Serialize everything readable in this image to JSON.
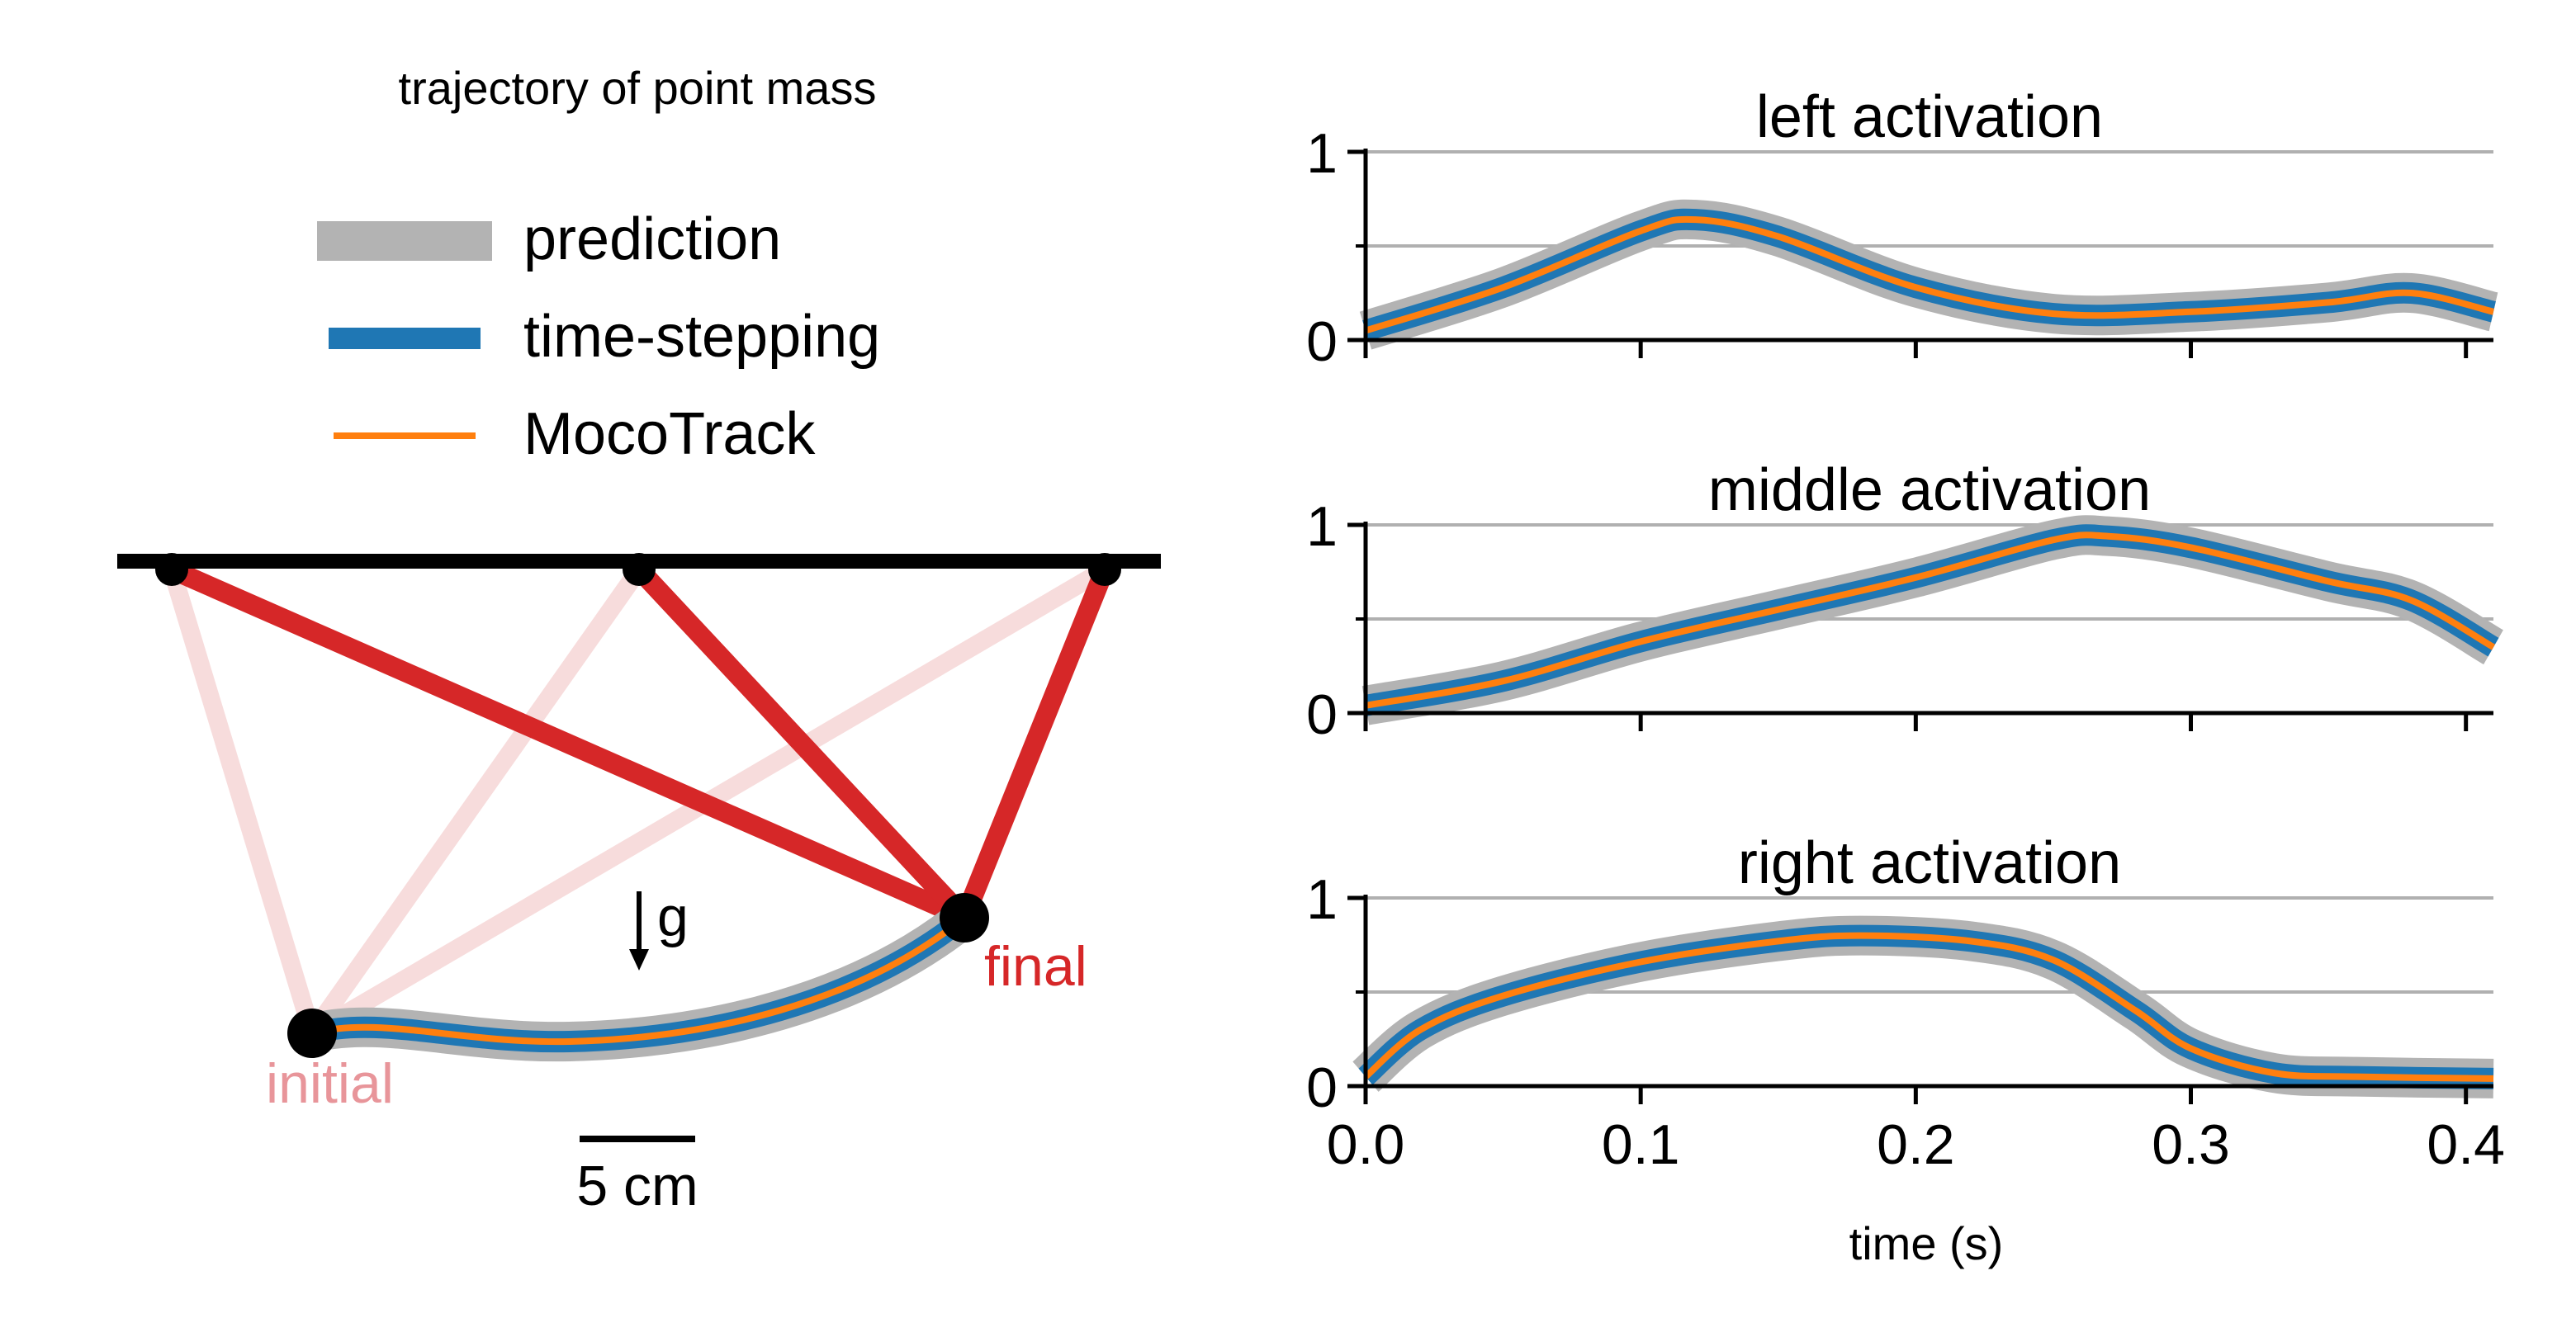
{
  "left_panel": {
    "title": "trajectory of point mass",
    "legend": [
      {
        "label": "prediction",
        "color": "#b3b3b3"
      },
      {
        "label": "time-stepping",
        "color": "#1f77b4"
      },
      {
        "label": "MocoTrack",
        "color": "#ff7f0e"
      }
    ],
    "gravity_label": "g",
    "initial_label": "initial",
    "final_label": "final",
    "scale_bar_label": "5 cm",
    "colors": {
      "muscle_final": "#d62728",
      "muscle_initial": "#f7dcdc",
      "initial_text": "#e8959a",
      "final_text": "#d62728",
      "ceiling": "#000000"
    }
  },
  "chart_data": [
    {
      "type": "line",
      "title": "left activation",
      "xlabel": "",
      "ylabel": "",
      "xlim": [
        0,
        0.41
      ],
      "ylim": [
        0,
        1
      ],
      "yticks": [
        "0",
        "1"
      ],
      "grid": true,
      "x": [
        0.0,
        0.05,
        0.1,
        0.12,
        0.15,
        0.2,
        0.25,
        0.3,
        0.35,
        0.38,
        0.41
      ],
      "series": [
        {
          "name": "prediction",
          "color": "#b3b3b3",
          "values": [
            0.05,
            0.28,
            0.58,
            0.64,
            0.55,
            0.28,
            0.14,
            0.15,
            0.2,
            0.25,
            0.15
          ]
        },
        {
          "name": "time-stepping",
          "color": "#1f77b4",
          "values": [
            0.05,
            0.28,
            0.58,
            0.64,
            0.55,
            0.28,
            0.14,
            0.15,
            0.2,
            0.25,
            0.15
          ]
        },
        {
          "name": "MocoTrack",
          "color": "#ff7f0e",
          "values": [
            0.05,
            0.28,
            0.58,
            0.64,
            0.55,
            0.28,
            0.14,
            0.15,
            0.2,
            0.25,
            0.15
          ]
        }
      ]
    },
    {
      "type": "line",
      "title": "middle activation",
      "xlabel": "",
      "ylabel": "",
      "xlim": [
        0,
        0.41
      ],
      "ylim": [
        0,
        1
      ],
      "yticks": [
        "0",
        "1"
      ],
      "grid": true,
      "x": [
        0.0,
        0.05,
        0.1,
        0.15,
        0.2,
        0.25,
        0.27,
        0.3,
        0.35,
        0.38,
        0.41
      ],
      "series": [
        {
          "name": "prediction",
          "color": "#b3b3b3",
          "values": [
            0.04,
            0.17,
            0.38,
            0.55,
            0.72,
            0.92,
            0.94,
            0.88,
            0.7,
            0.6,
            0.35
          ]
        },
        {
          "name": "time-stepping",
          "color": "#1f77b4",
          "values": [
            0.04,
            0.17,
            0.38,
            0.55,
            0.72,
            0.92,
            0.94,
            0.88,
            0.7,
            0.6,
            0.35
          ]
        },
        {
          "name": "MocoTrack",
          "color": "#ff7f0e",
          "values": [
            0.04,
            0.17,
            0.38,
            0.55,
            0.72,
            0.92,
            0.94,
            0.88,
            0.7,
            0.6,
            0.35
          ]
        }
      ]
    },
    {
      "type": "line",
      "title": "right activation",
      "xlabel": "time (s)",
      "ylabel": "",
      "xlim": [
        0,
        0.41
      ],
      "ylim": [
        0,
        1
      ],
      "yticks": [
        "0",
        "1"
      ],
      "xticks": [
        "0.0",
        "0.1",
        "0.2",
        "0.3",
        "0.4"
      ],
      "grid": true,
      "x": [
        0.0,
        0.02,
        0.05,
        0.1,
        0.15,
        0.18,
        0.22,
        0.25,
        0.28,
        0.3,
        0.33,
        0.36,
        0.41
      ],
      "series": [
        {
          "name": "prediction",
          "color": "#b3b3b3",
          "values": [
            0.05,
            0.3,
            0.48,
            0.66,
            0.77,
            0.8,
            0.77,
            0.67,
            0.4,
            0.2,
            0.07,
            0.05,
            0.04
          ]
        },
        {
          "name": "time-stepping",
          "color": "#1f77b4",
          "values": [
            0.05,
            0.3,
            0.48,
            0.66,
            0.77,
            0.8,
            0.77,
            0.67,
            0.4,
            0.2,
            0.07,
            0.05,
            0.04
          ]
        },
        {
          "name": "MocoTrack",
          "color": "#ff7f0e",
          "values": [
            0.05,
            0.3,
            0.48,
            0.66,
            0.77,
            0.8,
            0.77,
            0.67,
            0.4,
            0.2,
            0.07,
            0.05,
            0.04
          ]
        }
      ]
    }
  ]
}
